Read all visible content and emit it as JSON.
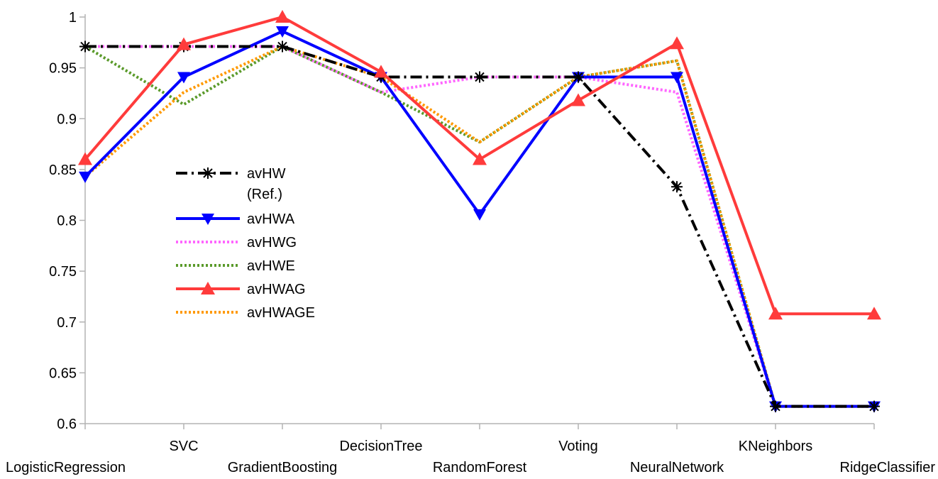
{
  "chart_data": {
    "type": "line",
    "categories": [
      "LogisticRegression",
      "SVC",
      "GradientBoosting",
      "DecisionTree",
      "RandomForest",
      "Voting",
      "NeuralNetwork",
      "KNeighbors",
      "RidgeClassifier"
    ],
    "ylim": [
      0.6,
      1.0
    ],
    "yticks": [
      "0.6",
      "0.65",
      "0.7",
      "0.75",
      "0.8",
      "0.85",
      "0.9",
      "0.95",
      "1"
    ],
    "grid": false,
    "legend_position": "center-left",
    "series": [
      {
        "name": "avHW (Ref.)",
        "legend_lines": [
          "avHW",
          "(Ref.)"
        ],
        "color": "#000000",
        "dash": "dashdot",
        "marker": "asterisk",
        "values": [
          0.971,
          0.971,
          0.971,
          0.941,
          0.941,
          0.941,
          0.833,
          0.617,
          0.617
        ]
      },
      {
        "name": "avHWA",
        "legend_lines": [
          "avHWA"
        ],
        "color": "#0000ff",
        "dash": "solid",
        "marker": "triangle-down",
        "values": [
          0.843,
          0.941,
          0.986,
          0.941,
          0.806,
          0.941,
          0.941,
          0.617,
          0.617
        ]
      },
      {
        "name": "avHWG",
        "legend_lines": [
          "avHWG"
        ],
        "color": "#ff66ff",
        "dash": "dotted",
        "marker": "none",
        "values": [
          0.971,
          0.971,
          0.971,
          0.926,
          0.941,
          0.941,
          0.926,
          0.617,
          0.617
        ]
      },
      {
        "name": "avHWE",
        "legend_lines": [
          "avHWE"
        ],
        "color": "#5a9a2a",
        "dash": "dotted",
        "marker": "none",
        "values": [
          0.971,
          0.914,
          0.971,
          0.926,
          0.877,
          0.941,
          0.957,
          0.617,
          0.617
        ]
      },
      {
        "name": "avHWAG",
        "legend_lines": [
          "avHWAG"
        ],
        "color": "#ff3b3b",
        "dash": "solid",
        "marker": "triangle-up",
        "values": [
          0.86,
          0.973,
          1.0,
          0.946,
          0.86,
          0.918,
          0.974,
          0.708,
          0.708
        ]
      },
      {
        "name": "avHWAGE",
        "legend_lines": [
          "avHWAGE"
        ],
        "color": "#ff9900",
        "dash": "dotted",
        "marker": "none",
        "values": [
          0.843,
          0.926,
          0.971,
          0.941,
          0.877,
          0.941,
          0.957,
          0.617,
          0.617
        ]
      }
    ]
  }
}
